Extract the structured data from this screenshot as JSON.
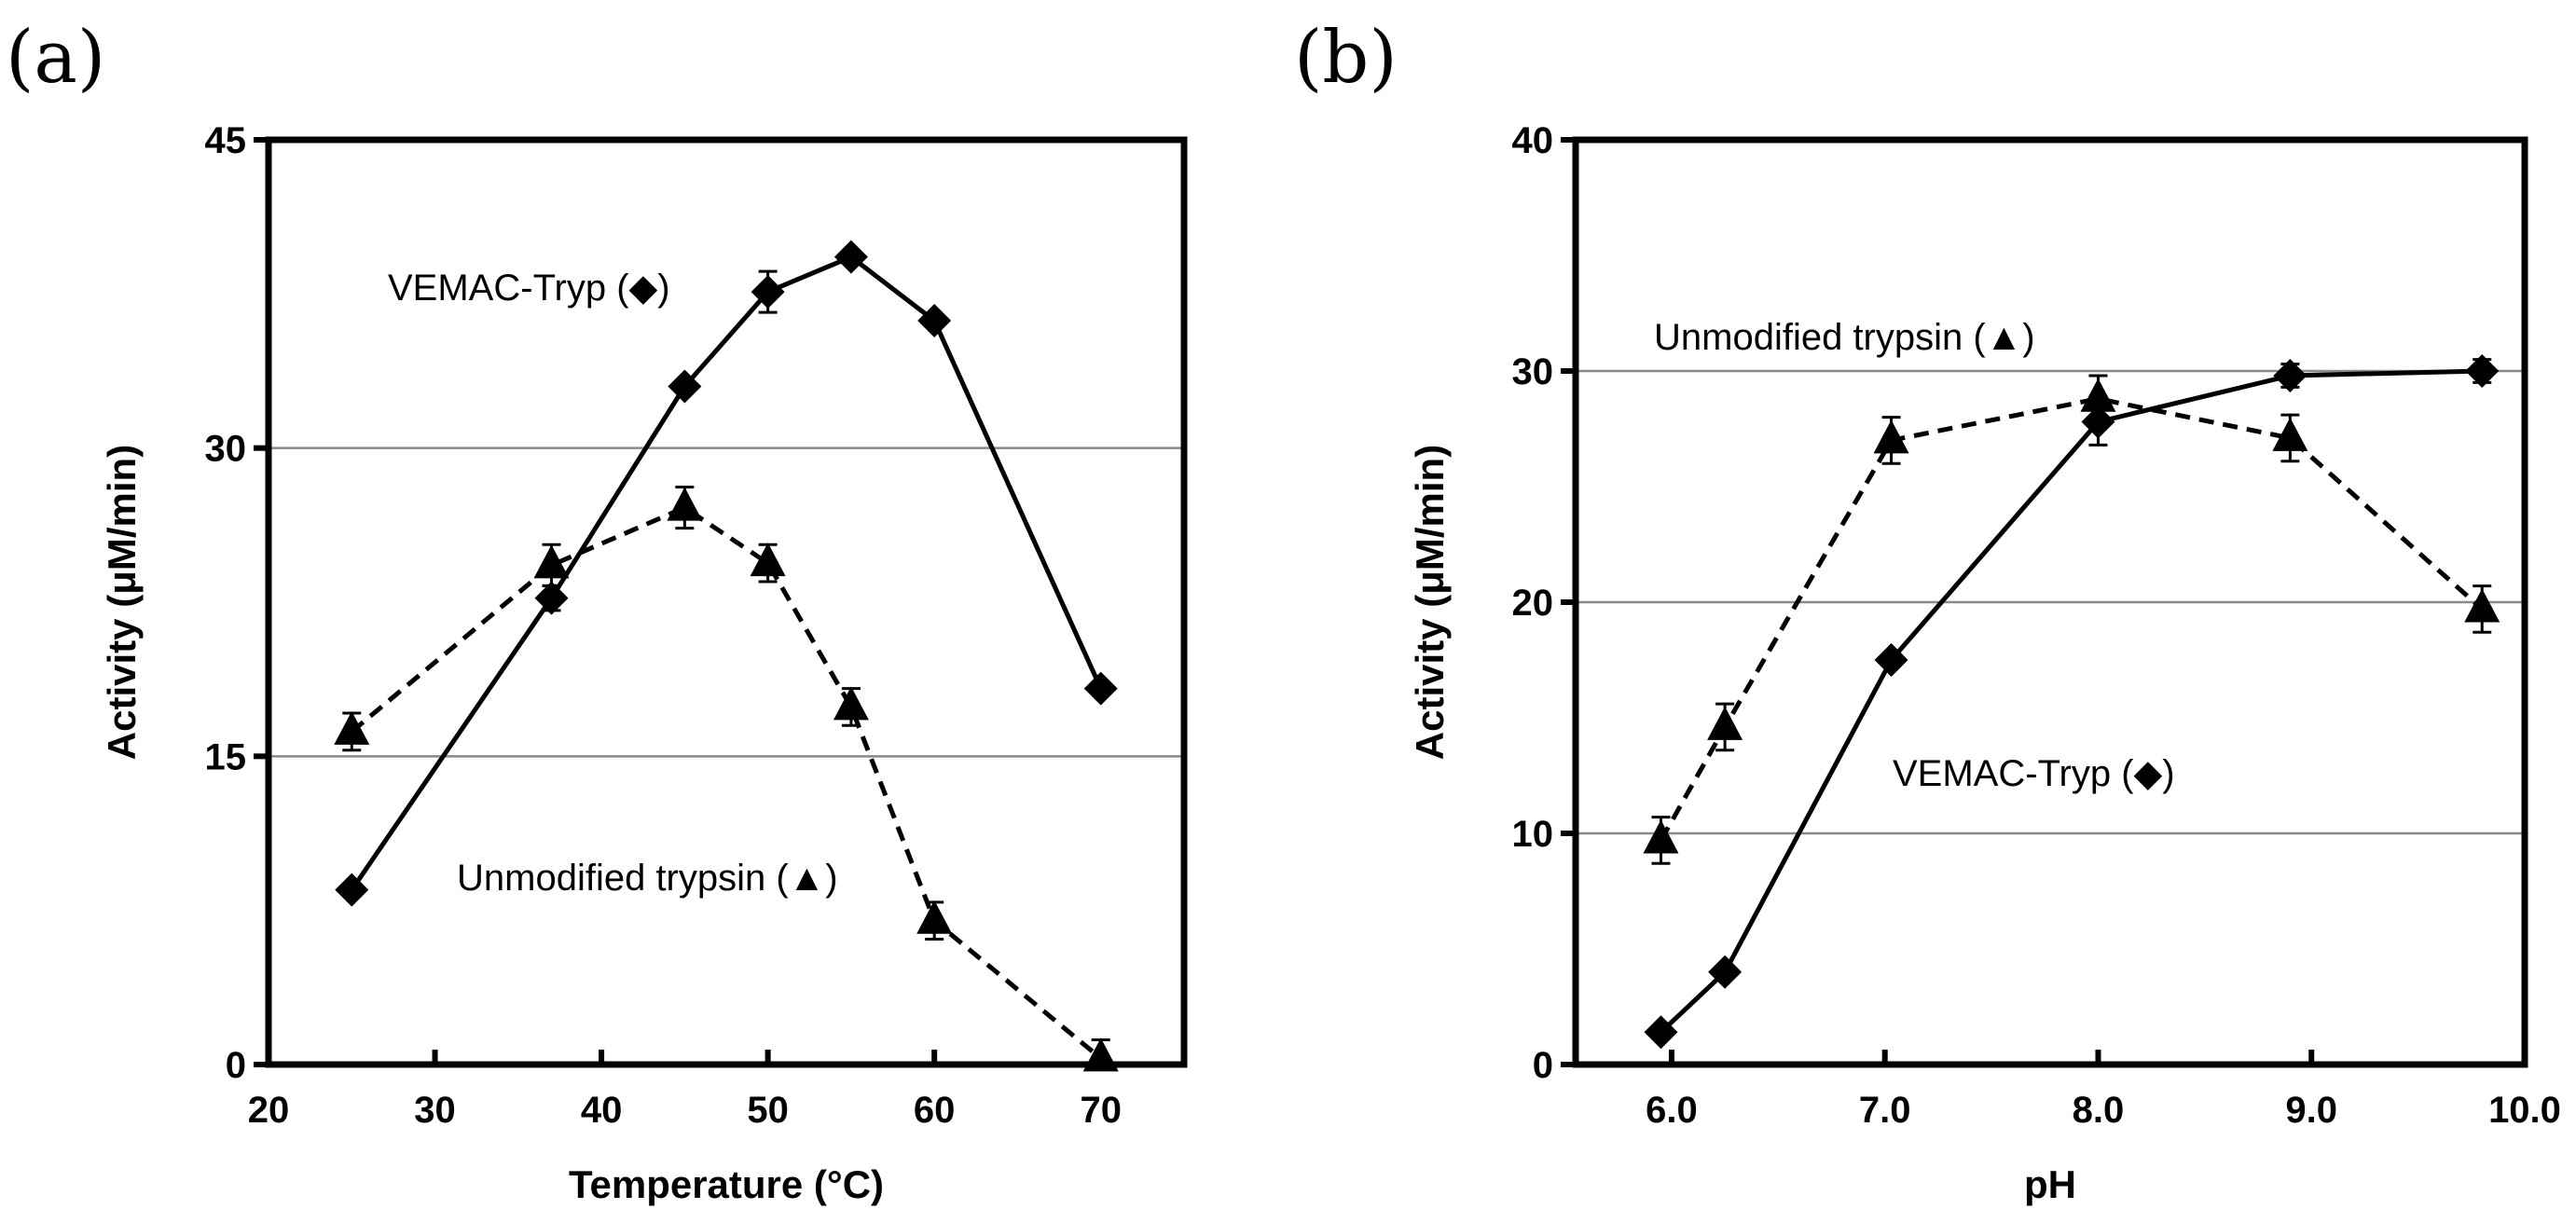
{
  "chart_data": [
    {
      "type": "line",
      "panel_label": "(a)",
      "xlabel": "Temperature (°C)",
      "ylabel": "Activity (μM/min)",
      "xlim": [
        20,
        75
      ],
      "ylim": [
        0,
        45
      ],
      "x_ticks": [
        20,
        30,
        40,
        50,
        60,
        70
      ],
      "y_ticks": [
        0,
        15,
        30,
        45
      ],
      "gridlines_y": [
        15,
        30
      ],
      "series": [
        {
          "name": "VEMAC-Tryp",
          "marker": "diamond",
          "line": "solid",
          "x": [
            25,
            37,
            45,
            50,
            55,
            60,
            70
          ],
          "y": [
            8.5,
            22.7,
            33.0,
            37.6,
            39.3,
            36.2,
            18.3
          ],
          "err": [
            0,
            0.6,
            0,
            1.0,
            0.3,
            0,
            0
          ]
        },
        {
          "name": "Unmodified trypsin",
          "marker": "triangle",
          "line": "dashed",
          "x": [
            25,
            37,
            45,
            50,
            55,
            60,
            70
          ],
          "y": [
            16.2,
            24.3,
            27.1,
            24.4,
            17.4,
            7.0,
            0.3
          ],
          "err": [
            0.9,
            1.0,
            1.0,
            0.9,
            0.9,
            0.9,
            0.9
          ]
        }
      ],
      "annotations": [
        {
          "text": "VEMAC-Tryp (◆)"
        },
        {
          "text": "Unmodified trypsin (▲)"
        }
      ]
    },
    {
      "type": "line",
      "panel_label": "(b)",
      "xlabel": "pH",
      "ylabel": "Activity (μM/min)",
      "xlim": [
        5.55,
        10.0
      ],
      "ylim": [
        0,
        40
      ],
      "x_ticks": [
        6.0,
        7.0,
        8.0,
        9.0,
        10.0
      ],
      "x_tick_labels": [
        "6.0",
        "7.0",
        "8.0",
        "9.0",
        "10.0"
      ],
      "y_ticks": [
        0,
        10,
        20,
        30,
        40
      ],
      "gridlines_y": [
        10,
        20,
        30
      ],
      "series": [
        {
          "name": "VEMAC-Tryp",
          "marker": "diamond",
          "line": "solid",
          "x": [
            5.95,
            6.25,
            7.03,
            8.0,
            8.9,
            9.8
          ],
          "y": [
            1.4,
            4.0,
            17.5,
            27.8,
            29.8,
            30.0
          ],
          "err": [
            0,
            0,
            0,
            1.0,
            0.5,
            0.5
          ]
        },
        {
          "name": "Unmodified trypsin",
          "marker": "triangle",
          "line": "dashed",
          "x": [
            5.95,
            6.25,
            7.03,
            8.0,
            8.9,
            9.8
          ],
          "y": [
            9.7,
            14.6,
            27.0,
            28.8,
            27.1,
            19.7
          ],
          "err": [
            1.0,
            1.0,
            1.0,
            1.0,
            1.0,
            1.0
          ]
        }
      ],
      "annotations": [
        {
          "text": "Unmodified trypsin (▲)"
        },
        {
          "text": "VEMAC-Tryp (◆)"
        }
      ]
    }
  ]
}
